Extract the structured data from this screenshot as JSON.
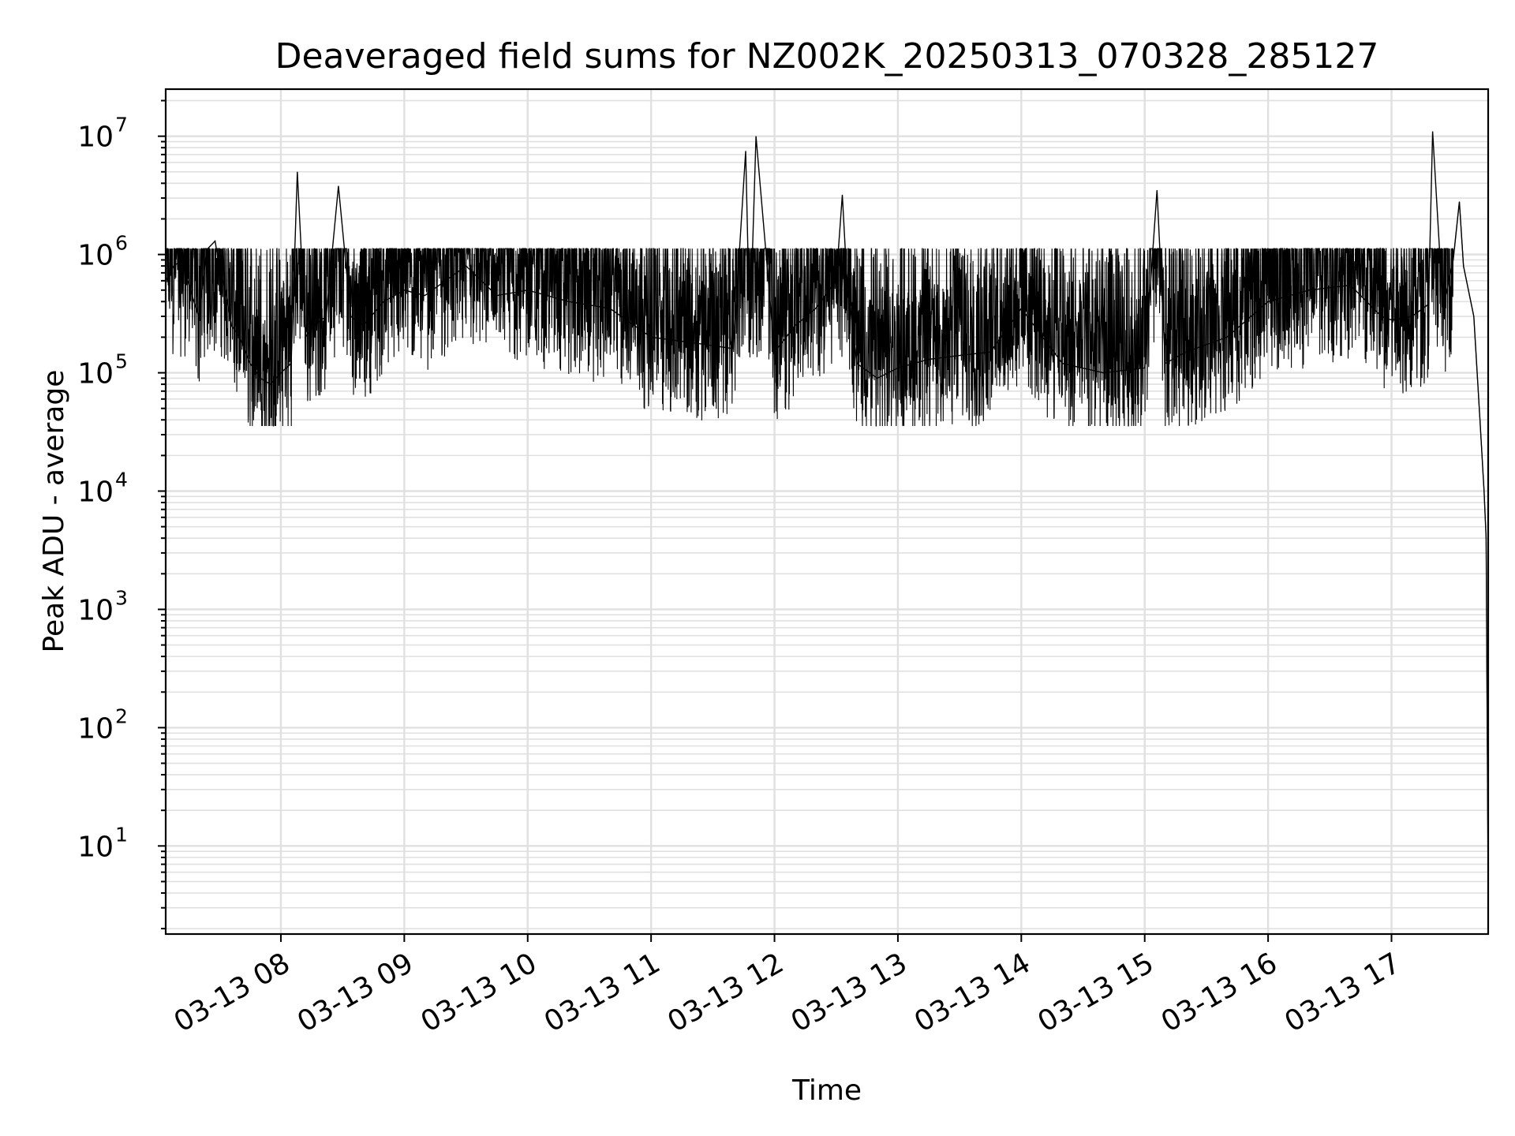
{
  "chart_data": {
    "type": "line",
    "title": "Deaveraged field sums for NZ002K_20250313_070328_285127",
    "xlabel": "Time",
    "ylabel": "Peak ADU - average",
    "x_scale": "time",
    "y_scale": "log",
    "xlim": [
      "03-13 07:04",
      "03-13 17:47"
    ],
    "ylim": [
      1.8,
      25000000
    ],
    "x_ticks": [
      "03-13 08",
      "03-13 09",
      "03-13 10",
      "03-13 11",
      "03-13 12",
      "03-13 13",
      "03-13 14",
      "03-13 15",
      "03-13 16",
      "03-13 17"
    ],
    "y_ticks": [
      {
        "value": 10,
        "base": "10",
        "exp": "1"
      },
      {
        "value": 100,
        "base": "10",
        "exp": "2"
      },
      {
        "value": 1000,
        "base": "10",
        "exp": "3"
      },
      {
        "value": 10000,
        "base": "10",
        "exp": "4"
      },
      {
        "value": 100000,
        "base": "10",
        "exp": "5"
      },
      {
        "value": 1000000,
        "base": "10",
        "exp": "6"
      },
      {
        "value": 10000000,
        "base": "10",
        "exp": "7"
      }
    ],
    "grid": true,
    "line_color": "#000000",
    "series": [
      {
        "x": [
          "07:04",
          "07:08",
          "07:12",
          "07:16",
          "07:20",
          "07:24",
          "07:28",
          "07:30",
          "07:33",
          "07:36",
          "07:40",
          "07:45",
          "07:50",
          "07:55",
          "08:00",
          "08:05",
          "08:08",
          "08:12",
          "08:16",
          "08:22",
          "08:28",
          "08:34",
          "08:40",
          "08:50",
          "09:00",
          "09:10",
          "09:20",
          "09:30",
          "09:45",
          "10:00",
          "10:20",
          "10:40",
          "11:00",
          "11:20",
          "11:40",
          "11:46",
          "11:48",
          "11:51",
          "12:00",
          "12:10",
          "12:20",
          "12:30",
          "12:33",
          "12:35",
          "12:40",
          "12:50",
          "13:00",
          "13:15",
          "13:30",
          "13:45",
          "14:00",
          "14:20",
          "14:40",
          "15:00",
          "15:06",
          "15:10",
          "15:20",
          "15:40",
          "16:00",
          "16:20",
          "16:40",
          "16:55",
          "17:00",
          "17:10",
          "17:18",
          "17:20",
          "17:25",
          "17:30",
          "17:33",
          "17:35",
          "17:40",
          "17:43",
          "17:45",
          "17:46",
          "17:47"
        ],
        "y": [
          600000,
          800000,
          900000,
          500000,
          300000,
          1100000,
          1300000,
          800000,
          500000,
          250000,
          200000,
          120000,
          90000,
          80000,
          100000,
          120000,
          5000000,
          200000,
          250000,
          300000,
          3800000,
          300000,
          250000,
          400000,
          500000,
          450000,
          600000,
          800000,
          450000,
          500000,
          400000,
          350000,
          200000,
          180000,
          160000,
          7500000,
          200000,
          10000000,
          150000,
          250000,
          350000,
          600000,
          3200000,
          700000,
          120000,
          90000,
          110000,
          130000,
          140000,
          150000,
          350000,
          120000,
          100000,
          110000,
          3500000,
          120000,
          150000,
          200000,
          400000,
          500000,
          550000,
          300000,
          280000,
          300000,
          380000,
          11000000,
          350000,
          900000,
          2800000,
          800000,
          300000,
          40000,
          10000,
          4000,
          4
        ]
      }
    ]
  }
}
